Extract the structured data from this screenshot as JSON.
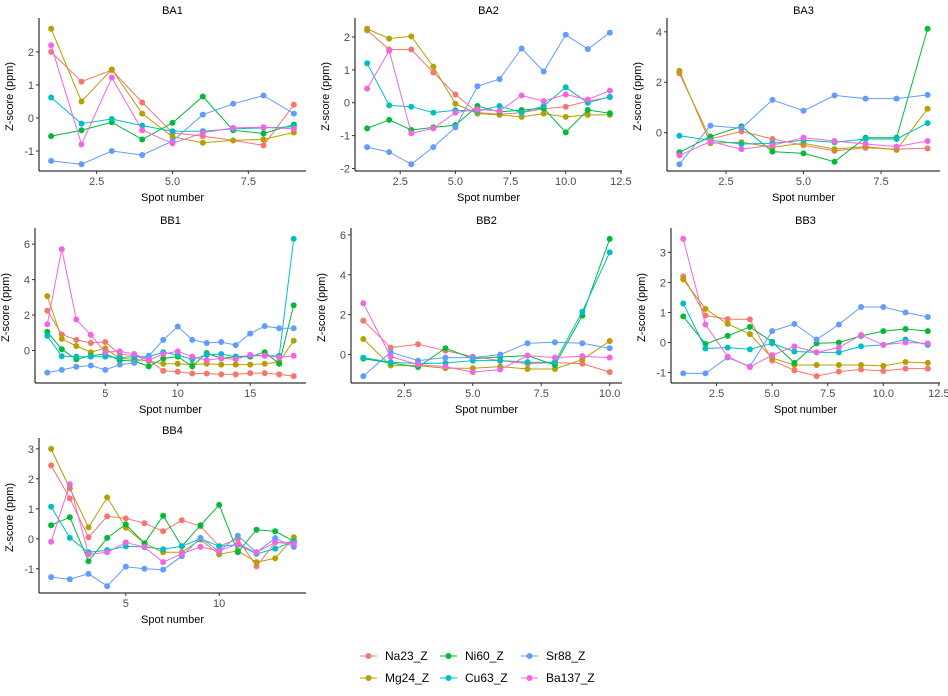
{
  "chart_data": {
    "type": "line",
    "series_names": [
      "Na23_Z",
      "Mg24_Z",
      "Ni60_Z",
      "Cu63_Z",
      "Sr88_Z",
      "Ba137_Z"
    ],
    "colors": {
      "Na23_Z": "#F8766D",
      "Mg24_Z": "#B79F00",
      "Ni60_Z": "#00BA38",
      "Cu63_Z": "#00BFC4",
      "Sr88_Z": "#619CFF",
      "Ba137_Z": "#F564E3"
    },
    "xlabel": "Spot number",
    "ylabel": "Z-score (ppm)",
    "grid": false,
    "legend_position": "bottom",
    "panels": [
      {
        "title": "BA1",
        "xticks": [
          2.5,
          5.0,
          7.5
        ],
        "xtick_labels": [
          "2.5",
          "5.0",
          "7.5"
        ],
        "yticks": [
          -1,
          0,
          1,
          2
        ],
        "ytick_labels": [
          "-1",
          "0",
          "1",
          "2"
        ],
        "series": {
          "Na23_Z": [
            2.0,
            1.1,
            1.45,
            0.47,
            -0.45,
            -0.55,
            -0.68,
            -0.83,
            0.4
          ],
          "Mg24_Z": [
            2.7,
            0.5,
            1.47,
            0.13,
            -0.57,
            -0.75,
            -0.68,
            -0.65,
            -0.44
          ],
          "Ni60_Z": [
            -0.55,
            -0.37,
            -0.13,
            -0.65,
            -0.15,
            0.65,
            -0.37,
            -0.47,
            -0.2
          ],
          "Cu63_Z": [
            0.62,
            -0.17,
            -0.03,
            -0.23,
            -0.4,
            -0.4,
            -0.33,
            -0.3,
            -0.27
          ],
          "Sr88_Z": [
            -1.3,
            -1.4,
            -1.0,
            -1.12,
            -0.7,
            0.1,
            0.43,
            0.68,
            0.13
          ],
          "Ba137_Z": [
            2.2,
            -0.8,
            1.22,
            -0.37,
            -0.77,
            -0.45,
            -0.3,
            -0.28,
            -0.33
          ]
        }
      },
      {
        "title": "BA2",
        "xticks": [
          2.5,
          5.0,
          7.5,
          10.0,
          12.5
        ],
        "xtick_labels": [
          "2.5",
          "5.0",
          "7.5",
          "10.0",
          "12.5"
        ],
        "yticks": [
          -2,
          -1,
          0,
          1,
          2
        ],
        "ytick_labels": [
          "-2",
          "-1",
          "0",
          "1",
          "2"
        ],
        "series": {
          "Na23_Z": [
            2.2,
            1.62,
            1.62,
            0.92,
            0.25,
            -0.3,
            -0.35,
            -0.3,
            -0.18,
            -0.12,
            0.05,
            0.17
          ],
          "Mg24_Z": [
            2.25,
            1.95,
            2.02,
            1.1,
            -0.03,
            -0.33,
            -0.37,
            -0.43,
            -0.33,
            -0.43,
            -0.37,
            -0.37
          ],
          "Ni60_Z": [
            -0.78,
            -0.52,
            -0.83,
            -0.75,
            -0.68,
            -0.1,
            -0.28,
            -0.22,
            -0.17,
            -0.9,
            -0.22,
            -0.32
          ],
          "Cu63_Z": [
            1.2,
            -0.08,
            -0.12,
            -0.3,
            -0.23,
            -0.25,
            -0.1,
            -0.3,
            -0.1,
            0.47,
            0.0,
            0.18
          ],
          "Sr88_Z": [
            -1.35,
            -1.5,
            -1.87,
            -1.35,
            -0.75,
            0.5,
            0.72,
            1.65,
            0.95,
            2.07,
            1.63,
            2.13
          ],
          "Ba137_Z": [
            0.43,
            1.58,
            -0.93,
            -0.78,
            -0.3,
            -0.2,
            -0.25,
            0.22,
            0.05,
            0.25,
            0.1,
            0.37
          ]
        }
      },
      {
        "title": "BA3",
        "xticks": [
          2.5,
          5.0,
          7.5
        ],
        "xtick_labels": [
          "2.5",
          "5.0",
          "7.5"
        ],
        "yticks": [
          0,
          2,
          4
        ],
        "ytick_labels": [
          "0",
          "2",
          "4"
        ],
        "series": {
          "Na23_Z": [
            2.35,
            -0.25,
            0.05,
            -0.25,
            -0.5,
            -0.72,
            -0.6,
            -0.65,
            -0.62
          ],
          "Mg24_Z": [
            2.45,
            -0.42,
            -0.38,
            -0.58,
            -0.42,
            -0.65,
            -0.55,
            -0.68,
            0.95
          ],
          "Ni60_Z": [
            -0.78,
            -0.15,
            0.25,
            -0.75,
            -0.82,
            -1.15,
            -0.2,
            -0.2,
            4.12
          ],
          "Cu63_Z": [
            -0.12,
            -0.3,
            -0.45,
            -0.42,
            -0.3,
            -0.38,
            -0.25,
            -0.25,
            0.38
          ],
          "Sr88_Z": [
            -1.25,
            0.28,
            0.18,
            1.3,
            0.87,
            1.48,
            1.35,
            1.35,
            1.5
          ],
          "Ba137_Z": [
            -0.9,
            -0.35,
            -0.65,
            -0.5,
            -0.2,
            -0.33,
            -0.45,
            -0.55,
            -0.33
          ]
        }
      },
      {
        "title": "BB1",
        "xticks": [
          5,
          10,
          15
        ],
        "xtick_labels": [
          "5",
          "10",
          "15"
        ],
        "yticks": [
          0,
          2,
          4,
          6
        ],
        "ytick_labels": [
          "0",
          "2",
          "4",
          "6"
        ],
        "series": {
          "Na23_Z": [
            2.25,
            0.9,
            0.6,
            0.42,
            0.48,
            -0.2,
            -0.3,
            -0.55,
            -1.15,
            -1.2,
            -1.3,
            -1.3,
            -1.35,
            -1.35,
            -1.28,
            -1.28,
            -1.35,
            -1.45
          ],
          "Mg24_Z": [
            3.07,
            0.65,
            0.25,
            -0.1,
            0.12,
            -0.45,
            -0.5,
            -0.6,
            -0.75,
            -0.75,
            -0.8,
            -0.75,
            -0.8,
            -0.8,
            -0.8,
            -0.75,
            -0.65,
            0.55
          ],
          "Ni60_Z": [
            1.05,
            0.07,
            -0.5,
            -0.3,
            -0.2,
            -0.55,
            -0.6,
            -0.9,
            -0.45,
            -0.35,
            -0.9,
            -0.15,
            -0.45,
            -0.35,
            -0.35,
            -0.1,
            -0.75,
            2.55
          ],
          "Cu63_Z": [
            0.82,
            -0.33,
            -0.35,
            -0.35,
            -0.35,
            -0.4,
            -0.35,
            -0.35,
            -0.1,
            -0.25,
            -0.5,
            -0.25,
            -0.2,
            -0.35,
            -0.3,
            -0.3,
            -0.3,
            6.3
          ],
          "Sr88_Z": [
            -1.25,
            -1.1,
            -0.92,
            -0.85,
            -1.1,
            -0.8,
            -0.7,
            -0.3,
            0.6,
            1.35,
            0.6,
            0.42,
            0.48,
            0.3,
            0.95,
            1.37,
            1.25,
            1.25
          ],
          "Ba137_Z": [
            1.48,
            5.72,
            1.75,
            0.88,
            -0.1,
            -0.05,
            -0.2,
            -0.55,
            -0.2,
            -0.05,
            -0.35,
            -0.55,
            -0.45,
            -0.5,
            -0.25,
            -0.3,
            -0.4,
            -0.3
          ]
        }
      },
      {
        "title": "BB2",
        "xticks": [
          2.5,
          5.0,
          7.5,
          10.0
        ],
        "xtick_labels": [
          "2.5",
          "5.0",
          "7.5",
          "10.0"
        ],
        "yticks": [
          0,
          2,
          4,
          6
        ],
        "ytick_labels": [
          "0",
          "2",
          "4",
          "6"
        ],
        "series": {
          "Na23_Z": [
            1.7,
            0.35,
            0.52,
            0.2,
            -0.1,
            -0.3,
            -0.45,
            -0.4,
            -0.45,
            -0.88
          ],
          "Mg24_Z": [
            0.78,
            -0.55,
            -0.55,
            -0.68,
            -0.68,
            -0.6,
            -0.72,
            -0.72,
            -0.25,
            0.68
          ],
          "Ni60_Z": [
            -0.2,
            -0.42,
            -0.62,
            0.32,
            -0.2,
            -0.12,
            -0.05,
            -0.52,
            1.95,
            5.8
          ],
          "Cu63_Z": [
            -0.15,
            -0.38,
            -0.45,
            -0.42,
            -0.3,
            -0.3,
            -0.38,
            -0.38,
            2.15,
            5.12
          ],
          "Sr88_Z": [
            -1.08,
            0.12,
            -0.3,
            -0.15,
            -0.15,
            0.0,
            0.57,
            0.62,
            0.57,
            0.32
          ],
          "Ba137_Z": [
            2.57,
            -0.1,
            -0.5,
            -0.6,
            -0.88,
            -0.75,
            -0.05,
            -0.15,
            -0.08,
            -0.15
          ]
        }
      },
      {
        "title": "BB3",
        "xticks": [
          2.5,
          5.0,
          7.5,
          10.0,
          12.5
        ],
        "xtick_labels": [
          "2.5",
          "5.0",
          "7.5",
          "10.0",
          "12.5"
        ],
        "yticks": [
          -1,
          0,
          1,
          2,
          3
        ],
        "ytick_labels": [
          "-1",
          "0",
          "1",
          "2",
          "3"
        ],
        "series": {
          "Na23_Z": [
            2.2,
            0.9,
            0.78,
            0.77,
            -0.6,
            -0.93,
            -1.12,
            -0.97,
            -0.9,
            -0.95,
            -0.87,
            -0.87
          ],
          "Mg24_Z": [
            2.1,
            1.12,
            0.62,
            0.28,
            -0.52,
            -0.75,
            -0.75,
            -0.75,
            -0.75,
            -0.78,
            -0.65,
            -0.68
          ],
          "Ni60_Z": [
            0.87,
            -0.05,
            0.22,
            0.52,
            0.02,
            -0.68,
            -0.03,
            0.0,
            0.22,
            0.38,
            0.45,
            0.38
          ],
          "Cu63_Z": [
            1.3,
            -0.2,
            -0.17,
            -0.23,
            -0.03,
            -0.3,
            -0.33,
            -0.33,
            -0.13,
            -0.08,
            0.1,
            -0.08
          ],
          "Sr88_Z": [
            -1.03,
            -1.03,
            -0.5,
            -0.8,
            0.38,
            0.62,
            0.1,
            0.6,
            1.18,
            1.18,
            1.0,
            0.85
          ],
          "Ba137_Z": [
            3.45,
            0.6,
            -0.47,
            -0.82,
            -0.42,
            -0.13,
            -0.33,
            -0.17,
            0.25,
            -0.08,
            0.0,
            -0.03
          ]
        }
      },
      {
        "title": "BB4",
        "xticks": [
          5,
          10
        ],
        "xtick_labels": [
          "5",
          "10"
        ],
        "yticks": [
          -1,
          0,
          1,
          2,
          3
        ],
        "ytick_labels": [
          "-1",
          "0",
          "1",
          "2",
          "3"
        ],
        "series": {
          "Na23_Z": [
            2.45,
            1.35,
            0.05,
            0.75,
            0.68,
            0.52,
            0.25,
            0.62,
            0.42,
            -0.25,
            0.0,
            -0.92,
            -0.12,
            -0.12
          ],
          "Mg24_Z": [
            3.0,
            1.68,
            0.38,
            1.38,
            0.37,
            -0.15,
            -0.45,
            -0.45,
            -0.03,
            -0.52,
            -0.4,
            -0.78,
            -0.65,
            0.05
          ],
          "Ni60_Z": [
            0.45,
            0.72,
            -0.75,
            0.03,
            0.48,
            -0.15,
            0.77,
            -0.25,
            0.45,
            1.13,
            -0.45,
            0.3,
            0.25,
            -0.08
          ],
          "Cu63_Z": [
            1.07,
            0.03,
            -0.45,
            -0.38,
            -0.25,
            -0.27,
            -0.35,
            -0.25,
            0.0,
            -0.25,
            -0.2,
            -0.5,
            -0.33,
            -0.08
          ],
          "Sr88_Z": [
            -1.28,
            -1.35,
            -1.17,
            -1.58,
            -0.93,
            -1.0,
            -1.03,
            -0.58,
            0.03,
            -0.42,
            0.1,
            -0.45,
            0.02,
            -0.27
          ],
          "Ba137_Z": [
            -0.1,
            1.82,
            -0.52,
            -0.45,
            -0.12,
            -0.28,
            -0.78,
            -0.5,
            -0.27,
            -0.4,
            -0.17,
            -0.45,
            -0.12,
            -0.17
          ]
        }
      }
    ]
  }
}
